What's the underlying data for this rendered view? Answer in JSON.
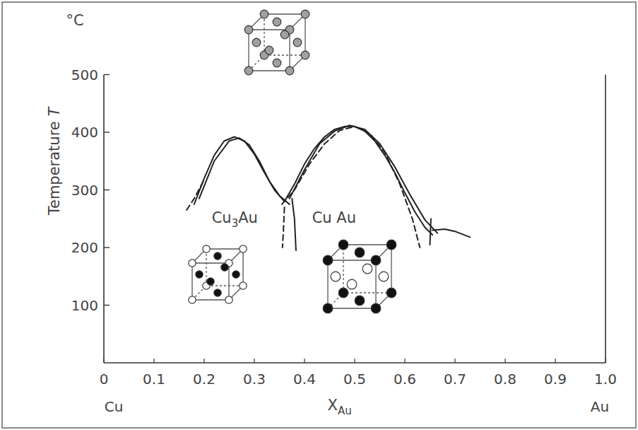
{
  "chart_data": {
    "type": "line",
    "y_unit": "°C",
    "ylabel": [
      {
        "text": "Temperature "
      },
      {
        "text": "T",
        "italic": true
      }
    ],
    "xlabel": [
      {
        "text": "X"
      },
      {
        "text": "Au",
        "sub": true
      }
    ],
    "end_labels": [
      "Cu",
      "Au"
    ],
    "xlim": [
      0,
      1
    ],
    "ylim": [
      0,
      500
    ],
    "xticks": [
      0,
      0.1,
      0.2,
      0.3,
      0.4,
      0.5,
      0.6,
      0.7,
      0.8,
      0.9,
      {
        "value": 1,
        "label": "1.0"
      }
    ],
    "yticks": [
      100,
      200,
      300,
      400,
      500
    ],
    "grid": false,
    "annotations": [
      {
        "parts": [
          {
            "text": "Cu"
          },
          {
            "text": "3",
            "sub": true
          },
          {
            "text": "Au"
          }
        ],
        "x": 0.215,
        "y": 243
      },
      {
        "parts": [
          {
            "text": "Cu Au"
          }
        ],
        "x": 0.415,
        "y": 243
      }
    ],
    "series": [
      {
        "x": [
          0.18,
          0.2,
          0.22,
          0.24,
          0.26,
          0.28,
          0.3,
          0.32,
          0.34,
          0.36
        ],
        "values": [
          275,
          320,
          360,
          385,
          392,
          385,
          362,
          330,
          300,
          280
        ],
        "color": "#222222",
        "line_style": "solid"
      },
      {
        "x": [
          0.19,
          0.22,
          0.25,
          0.27,
          0.29,
          0.31,
          0.33,
          0.35,
          0.37
        ],
        "values": [
          285,
          350,
          385,
          390,
          378,
          350,
          315,
          290,
          275
        ],
        "color": "#222222",
        "line_style": "solid"
      },
      {
        "x": [
          0.165,
          0.18,
          0.2
        ],
        "values": [
          265,
          285,
          318
        ],
        "color": "#222222",
        "line_style": "dashed"
      },
      {
        "x": [
          0.375,
          0.38,
          0.383
        ],
        "values": [
          285,
          250,
          195
        ],
        "color": "#222222",
        "line_style": "solid"
      },
      {
        "x": [
          0.36,
          0.358,
          0.356
        ],
        "values": [
          270,
          230,
          200
        ],
        "color": "#222222",
        "line_style": "dashed"
      },
      {
        "x": [
          0.36,
          0.38,
          0.4,
          0.42,
          0.44,
          0.46,
          0.48,
          0.5,
          0.52,
          0.54,
          0.56,
          0.58,
          0.6,
          0.62,
          0.64,
          0.655
        ],
        "values": [
          280,
          310,
          345,
          372,
          392,
          405,
          410,
          410,
          402,
          385,
          360,
          330,
          295,
          262,
          235,
          222
        ],
        "color": "#222222",
        "line_style": "solid"
      },
      {
        "x": [
          0.37,
          0.4,
          0.43,
          0.46,
          0.49,
          0.52,
          0.55,
          0.58,
          0.61,
          0.64,
          0.665
        ],
        "values": [
          285,
          335,
          380,
          402,
          412,
          405,
          380,
          340,
          292,
          248,
          225
        ],
        "color": "#222222",
        "line_style": "solid"
      },
      {
        "x": [
          0.355,
          0.38,
          0.41,
          0.44,
          0.47,
          0.5,
          0.53,
          0.56,
          0.59,
          0.615,
          0.63
        ],
        "values": [
          275,
          300,
          345,
          380,
          403,
          410,
          398,
          365,
          310,
          250,
          200
        ],
        "color": "#222222",
        "line_style": "dashed"
      },
      {
        "x": [
          0.655,
          0.68,
          0.7,
          0.73
        ],
        "values": [
          230,
          232,
          228,
          218
        ],
        "color": "#222222",
        "line_style": "solid"
      },
      {
        "x": [
          0.652,
          0.65
        ],
        "values": [
          250,
          205
        ],
        "color": "#222222",
        "line_style": "solid"
      }
    ]
  }
}
